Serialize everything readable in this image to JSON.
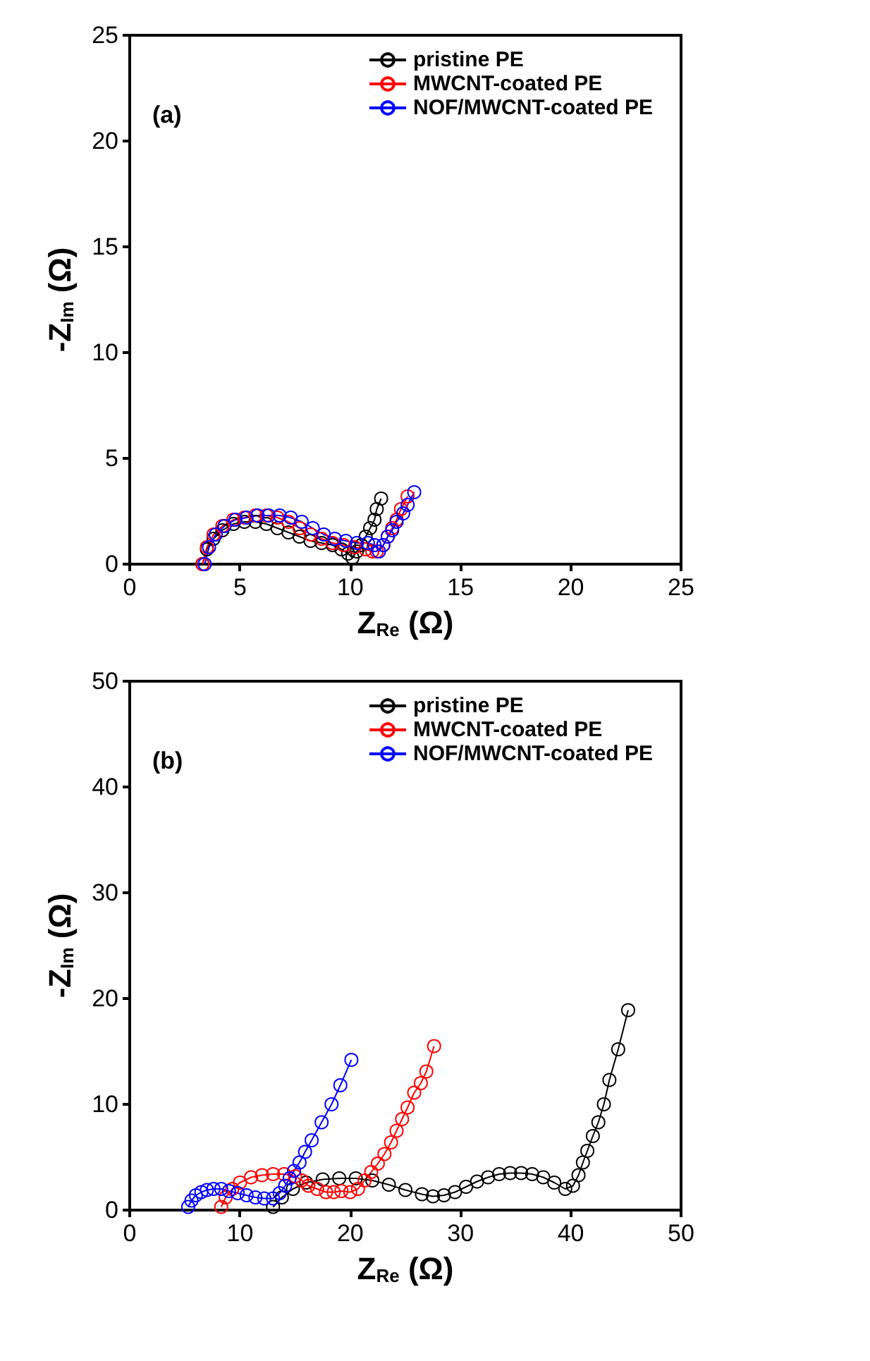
{
  "chart_data": [
    {
      "type": "line",
      "xlabel": "Z$_{Re}$ (Ω)",
      "ylabel": "-Z$_{Im}$ (Ω)",
      "annotations": [
        "(a)"
      ],
      "xlim": [
        0,
        25
      ],
      "ylim": [
        0,
        25
      ],
      "xticks": [
        0,
        5,
        10,
        15,
        20,
        25
      ],
      "yticks": [
        0,
        5,
        10,
        15,
        20,
        25
      ],
      "legend": "top right",
      "marker": "circle",
      "series": [
        {
          "name": "pristine PE",
          "color": "#000000",
          "x": [
            3.3,
            3.5,
            3.8,
            4.2,
            4.7,
            5.2,
            5.7,
            6.2,
            6.7,
            7.2,
            7.7,
            8.2,
            8.7,
            9.2,
            9.6,
            9.9,
            10.1,
            10.3,
            10.5,
            10.7,
            10.9,
            11.1,
            11.2,
            11.4
          ],
          "values": [
            0.0,
            0.7,
            1.2,
            1.6,
            1.9,
            2.0,
            2.0,
            1.9,
            1.7,
            1.5,
            1.3,
            1.1,
            1.0,
            0.9,
            0.7,
            0.5,
            0.3,
            0.6,
            0.9,
            1.3,
            1.7,
            2.1,
            2.6,
            3.1
          ]
        },
        {
          "name": "MWCNT-coated PE",
          "color": "#ff0000",
          "x": [
            3.3,
            3.5,
            3.8,
            4.2,
            4.7,
            5.2,
            5.7,
            6.2,
            6.7,
            7.2,
            7.7,
            8.2,
            8.7,
            9.2,
            9.7,
            10.2,
            10.7,
            11.0,
            11.2,
            11.5,
            11.7,
            11.9,
            12.1,
            12.3,
            12.6
          ],
          "values": [
            0.0,
            0.8,
            1.4,
            1.8,
            2.1,
            2.2,
            2.3,
            2.3,
            2.2,
            2.0,
            1.7,
            1.4,
            1.2,
            1.0,
            0.9,
            0.8,
            0.7,
            0.6,
            0.6,
            0.9,
            1.3,
            1.7,
            2.1,
            2.6,
            3.2
          ]
        },
        {
          "name": "NOF/MWCNT-coated PE",
          "color": "#0000ff",
          "x": [
            3.4,
            3.6,
            3.9,
            4.3,
            4.8,
            5.3,
            5.8,
            6.3,
            6.8,
            7.3,
            7.8,
            8.3,
            8.8,
            9.3,
            9.8,
            10.3,
            10.8,
            11.1,
            11.3,
            11.5,
            11.7,
            11.9,
            12.1,
            12.4,
            12.6,
            12.9
          ],
          "values": [
            0.0,
            0.8,
            1.4,
            1.8,
            2.1,
            2.2,
            2.3,
            2.3,
            2.3,
            2.2,
            2.0,
            1.7,
            1.4,
            1.2,
            1.1,
            1.0,
            1.0,
            0.9,
            0.6,
            0.9,
            1.3,
            1.6,
            2.0,
            2.4,
            2.8,
            3.4
          ]
        }
      ]
    },
    {
      "type": "line",
      "xlabel": "Z$_{Re}$ (Ω)",
      "ylabel": "-Z$_{Im}$ (Ω)",
      "annotations": [
        "(b)"
      ],
      "xlim": [
        0,
        50
      ],
      "ylim": [
        0,
        50
      ],
      "xticks": [
        0,
        10,
        20,
        30,
        40,
        50
      ],
      "yticks": [
        0,
        10,
        20,
        30,
        40,
        50
      ],
      "legend": "top right",
      "marker": "circle",
      "series": [
        {
          "name": "pristine PE",
          "color": "#000000",
          "x": [
            13.0,
            13.8,
            14.8,
            16.0,
            17.5,
            19.0,
            20.5,
            22.0,
            23.5,
            25.0,
            26.5,
            27.5,
            28.5,
            29.5,
            30.5,
            31.5,
            32.5,
            33.5,
            34.5,
            35.5,
            36.5,
            37.5,
            38.5,
            39.5,
            40.2,
            40.7,
            41.1,
            41.5,
            42.0,
            42.5,
            43.0,
            43.5,
            44.3,
            45.2
          ],
          "values": [
            0.3,
            1.2,
            2.0,
            2.6,
            2.9,
            3.0,
            3.0,
            2.8,
            2.4,
            1.9,
            1.5,
            1.3,
            1.4,
            1.7,
            2.2,
            2.7,
            3.1,
            3.4,
            3.5,
            3.5,
            3.4,
            3.1,
            2.6,
            2.0,
            2.3,
            3.3,
            4.5,
            5.6,
            7.0,
            8.3,
            10.0,
            12.3,
            15.2,
            18.9
          ]
        },
        {
          "name": "MWCNT-coated PE",
          "color": "#ff0000",
          "x": [
            8.3,
            8.7,
            9.3,
            10.0,
            11.0,
            12.0,
            13.0,
            14.0,
            15.0,
            15.6,
            16.2,
            17.0,
            17.8,
            18.5,
            19.2,
            20.0,
            20.7,
            21.3,
            21.9,
            22.5,
            23.1,
            23.7,
            24.2,
            24.7,
            25.2,
            25.8,
            26.4,
            26.9,
            27.6
          ],
          "values": [
            0.3,
            1.2,
            2.0,
            2.6,
            3.1,
            3.3,
            3.4,
            3.4,
            3.2,
            2.8,
            2.3,
            2.0,
            1.7,
            1.7,
            1.8,
            1.7,
            2.0,
            2.8,
            3.6,
            4.4,
            5.3,
            6.4,
            7.5,
            8.6,
            9.7,
            11.1,
            12.0,
            13.1,
            15.5
          ]
        },
        {
          "name": "NOF/MWCNT-coated PE",
          "color": "#0000ff",
          "x": [
            5.3,
            5.6,
            6.0,
            6.5,
            7.0,
            7.6,
            8.3,
            9.0,
            9.8,
            10.6,
            11.4,
            12.2,
            13.0,
            13.6,
            14.1,
            14.5,
            14.9,
            15.4,
            15.9,
            16.5,
            17.4,
            18.3,
            19.1,
            20.1
          ],
          "values": [
            0.3,
            0.9,
            1.4,
            1.7,
            1.9,
            2.0,
            2.0,
            1.8,
            1.6,
            1.4,
            1.2,
            1.1,
            1.1,
            1.6,
            2.3,
            3.0,
            3.7,
            4.5,
            5.5,
            6.6,
            8.3,
            10.0,
            11.8,
            14.2
          ]
        }
      ]
    }
  ]
}
